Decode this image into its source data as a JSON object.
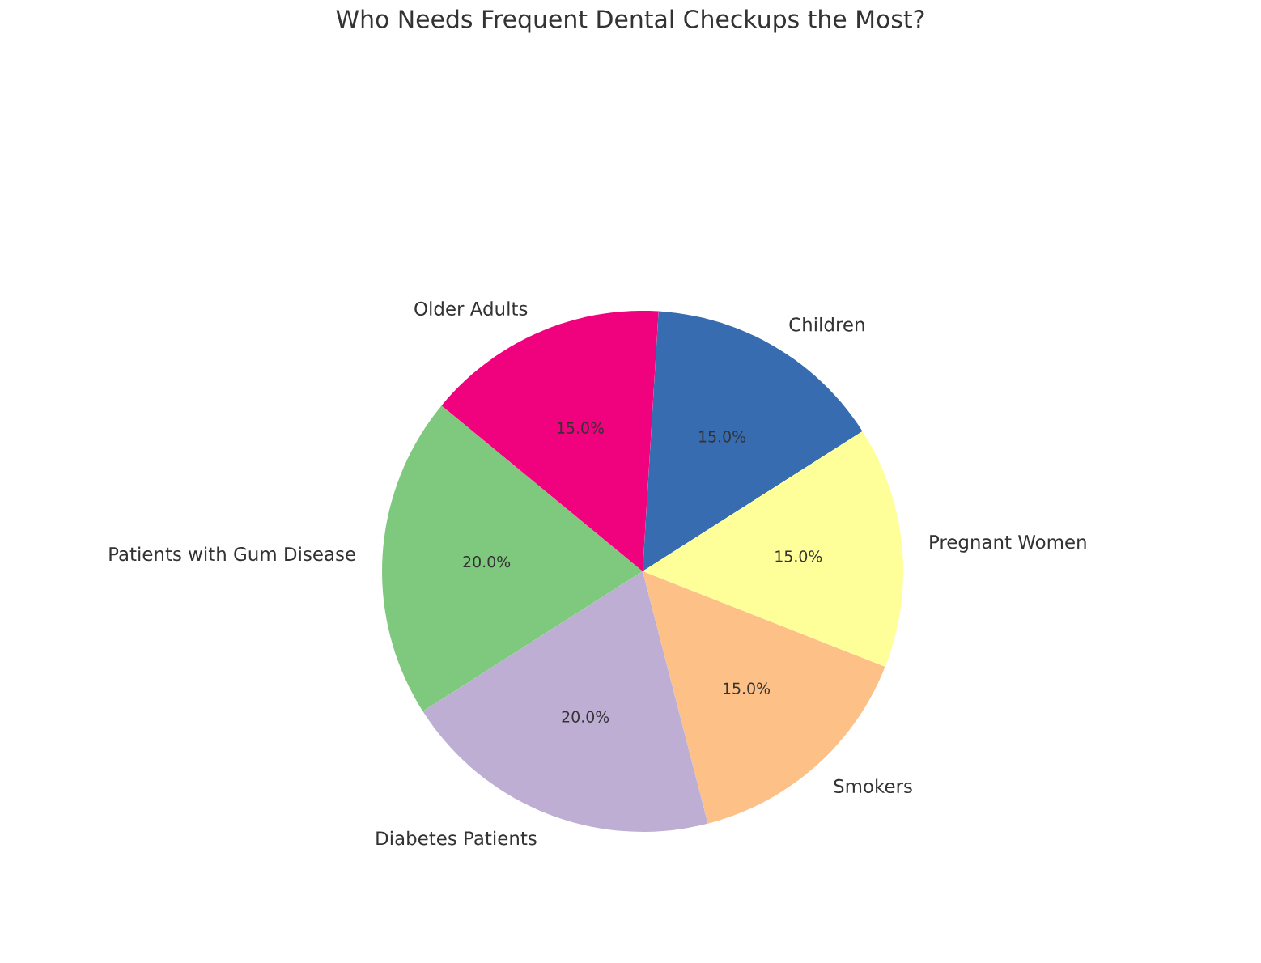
{
  "chart_data": {
    "type": "pie",
    "title": "Who Needs Frequent Dental Checkups the Most?",
    "categories": [
      "Children",
      "Pregnant Women",
      "Smokers",
      "Diabetes Patients",
      "Patients with Gum Disease",
      "Older Adults"
    ],
    "values": [
      15,
      15,
      15,
      20,
      20,
      15
    ],
    "colors": [
      "#386cb0",
      "#ffff99",
      "#fdc086",
      "#beaed4",
      "#7fc97f",
      "#f0027f"
    ],
    "value_labels": [
      "15.0%",
      "15.0%",
      "15.0%",
      "20.0%",
      "20.0%",
      "15.0%"
    ]
  }
}
